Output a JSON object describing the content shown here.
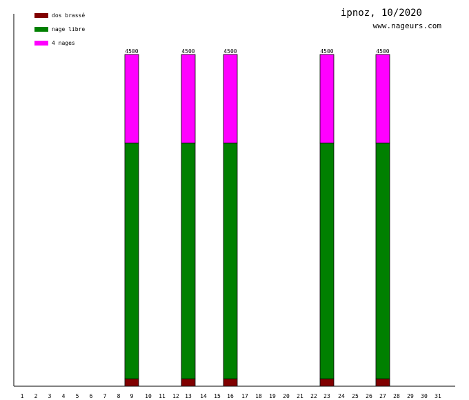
{
  "chart_data": {
    "type": "bar",
    "stacked": true,
    "title": "ipnoz, 10/2020",
    "subtitle": "www.nageurs.com",
    "xlabel": "",
    "ylabel": "",
    "ylim": [
      0,
      4500
    ],
    "grid": false,
    "legend_position": "top-left",
    "categories": [
      "1",
      "2",
      "3",
      "4",
      "5",
      "6",
      "7",
      "8",
      "9",
      "10",
      "11",
      "12",
      "13",
      "14",
      "15",
      "16",
      "17",
      "18",
      "19",
      "20",
      "21",
      "22",
      "23",
      "24",
      "25",
      "26",
      "27",
      "28",
      "29",
      "30",
      "31"
    ],
    "series": [
      {
        "name": "dos brassé",
        "color": "#800000",
        "values": [
          0,
          0,
          0,
          0,
          0,
          0,
          0,
          0,
          100,
          0,
          0,
          0,
          100,
          0,
          0,
          100,
          0,
          0,
          0,
          0,
          0,
          0,
          100,
          0,
          0,
          0,
          100,
          0,
          0,
          0,
          0
        ]
      },
      {
        "name": "nage libre",
        "color": "#008000",
        "values": [
          0,
          0,
          0,
          0,
          0,
          0,
          0,
          0,
          3200,
          0,
          0,
          0,
          3200,
          0,
          0,
          3200,
          0,
          0,
          0,
          0,
          0,
          0,
          3200,
          0,
          0,
          0,
          3200,
          0,
          0,
          0,
          0
        ]
      },
      {
        "name": "4 nages",
        "color": "#ff00ff",
        "values": [
          0,
          0,
          0,
          0,
          0,
          0,
          0,
          0,
          1200,
          0,
          0,
          0,
          1200,
          0,
          0,
          1200,
          0,
          0,
          0,
          0,
          0,
          0,
          1200,
          0,
          0,
          0,
          1200,
          0,
          0,
          0,
          0
        ]
      }
    ],
    "totals": [
      0,
      0,
      0,
      0,
      0,
      0,
      0,
      0,
      4500,
      0,
      0,
      0,
      4500,
      0,
      0,
      4500,
      0,
      0,
      0,
      0,
      0,
      0,
      4500,
      0,
      0,
      0,
      4500,
      0,
      0,
      0,
      0
    ]
  }
}
